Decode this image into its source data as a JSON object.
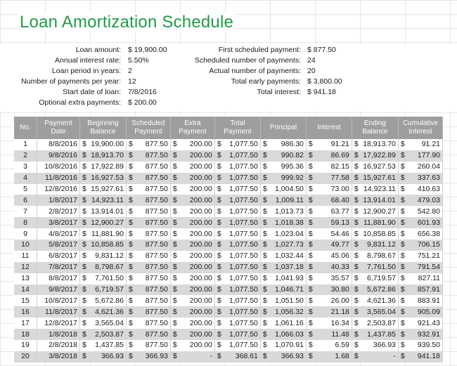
{
  "title": "Loan Amortization Schedule",
  "inputs_left": [
    {
      "label": "Loan amount:",
      "value": "$ 19,900.00"
    },
    {
      "label": "Annual interest rate:",
      "value": "5.50%"
    },
    {
      "label": "Loan period in years:",
      "value": "2"
    },
    {
      "label": "Number of payments per year:",
      "value": "12"
    },
    {
      "label": "Start date of loan:",
      "value": "7/8/2016"
    },
    {
      "label": "Optional extra payments:",
      "value": "$ 200.00"
    }
  ],
  "inputs_right": [
    {
      "label": "First scheduled payment:",
      "value": "$ 877.50"
    },
    {
      "label": "Scheduled number of payments:",
      "value": "24"
    },
    {
      "label": "Actual number of payments:",
      "value": "20"
    },
    {
      "label": "Total early payments:",
      "value": "$ 3,800.00"
    },
    {
      "label": "Total interest:",
      "value": "$ 941.18"
    }
  ],
  "table": {
    "headers": [
      "No.",
      "Payment Date",
      "Beginning Balance",
      "Scheduled Payment",
      "Extra Payment",
      "Total Payment",
      "Principal",
      "Interest",
      "Ending Balance",
      "Cumulative Interest"
    ],
    "rows": [
      [
        "1",
        "8/8/2016",
        "19,900.00",
        "877.50",
        "200.00",
        "1,077.50",
        "986.30",
        "91.21",
        "18,913.70",
        "91.21"
      ],
      [
        "2",
        "9/8/2016",
        "18,913.70",
        "877.50",
        "200.00",
        "1,077.50",
        "990.82",
        "86.69",
        "17,922.89",
        "177.90"
      ],
      [
        "3",
        "10/8/2016",
        "17,922.89",
        "877.50",
        "200.00",
        "1,077.50",
        "995.36",
        "82.15",
        "16,927.53",
        "260.04"
      ],
      [
        "4",
        "11/8/2016",
        "16,927.53",
        "877.50",
        "200.00",
        "1,077.50",
        "999.92",
        "77.58",
        "15,927.61",
        "337.63"
      ],
      [
        "5",
        "12/8/2016",
        "15,927.61",
        "877.50",
        "200.00",
        "1,077.50",
        "1,004.50",
        "73.00",
        "14,923.11",
        "410.63"
      ],
      [
        "6",
        "1/8/2017",
        "14,923.11",
        "877.50",
        "200.00",
        "1,077.50",
        "1,009.11",
        "68.40",
        "13,914.01",
        "479.03"
      ],
      [
        "7",
        "2/8/2017",
        "13,914.01",
        "877.50",
        "200.00",
        "1,077.50",
        "1,013.73",
        "63.77",
        "12,900.27",
        "542.80"
      ],
      [
        "8",
        "3/8/2017",
        "12,900.27",
        "877.50",
        "200.00",
        "1,077.50",
        "1,018.38",
        "59.13",
        "11,881.90",
        "601.93"
      ],
      [
        "9",
        "4/8/2017",
        "11,881.90",
        "877.50",
        "200.00",
        "1,077.50",
        "1,023.04",
        "54.46",
        "10,858.85",
        "656.38"
      ],
      [
        "10",
        "5/8/2017",
        "10,858.85",
        "877.50",
        "200.00",
        "1,077.50",
        "1,027.73",
        "49.77",
        "9,831.12",
        "706.15"
      ],
      [
        "11",
        "6/8/2017",
        "9,831.12",
        "877.50",
        "200.00",
        "1,077.50",
        "1,032.44",
        "45.06",
        "8,798.67",
        "751.21"
      ],
      [
        "12",
        "7/8/2017",
        "8,798.67",
        "877.50",
        "200.00",
        "1,077.50",
        "1,037.18",
        "40.33",
        "7,761.50",
        "791.54"
      ],
      [
        "13",
        "8/8/2017",
        "7,761.50",
        "877.50",
        "200.00",
        "1,077.50",
        "1,041.93",
        "35.57",
        "6,719.57",
        "827.11"
      ],
      [
        "14",
        "9/8/2017",
        "6,719.57",
        "877.50",
        "200.00",
        "1,077.50",
        "1,046.71",
        "30.80",
        "5,672.86",
        "857.91"
      ],
      [
        "15",
        "10/8/2017",
        "5,672.86",
        "877.50",
        "200.00",
        "1,077.50",
        "1,051.50",
        "26.00",
        "4,621.36",
        "883.91"
      ],
      [
        "16",
        "11/8/2017",
        "4,621.36",
        "877.50",
        "200.00",
        "1,077.50",
        "1,056.32",
        "21.18",
        "3,565.04",
        "905.09"
      ],
      [
        "17",
        "12/8/2017",
        "3,565.04",
        "877.50",
        "200.00",
        "1,077.50",
        "1,061.16",
        "16.34",
        "2,503.87",
        "921.43"
      ],
      [
        "18",
        "1/8/2018",
        "2,503.87",
        "877.50",
        "200.00",
        "1,077.50",
        "1,066.03",
        "11.48",
        "1,437.85",
        "932.91"
      ],
      [
        "19",
        "2/8/2018",
        "1,437.85",
        "877.50",
        "200.00",
        "1,077.50",
        "1,070.91",
        "6.59",
        "366.93",
        "939.50"
      ],
      [
        "20",
        "3/8/2018",
        "366.93",
        "366.93",
        "-",
        "368.61",
        "366.93",
        "1.68",
        "-",
        "941.18"
      ]
    ]
  },
  "colors": {
    "title": "#1e9e48",
    "header_bg": "#9e9e9e",
    "band_row": "#d9d9d9"
  }
}
